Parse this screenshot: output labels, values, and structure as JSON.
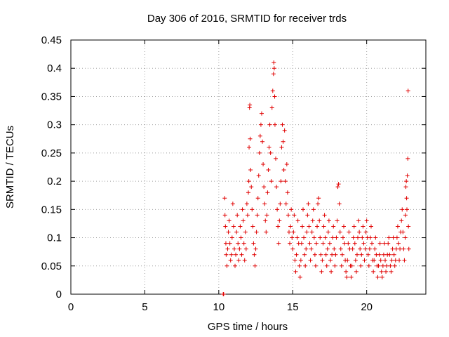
{
  "chart_data": {
    "type": "scatter",
    "title": "Day 306 of 2016, SRMTID for receiver trds",
    "xlabel": "GPS time / hours",
    "ylabel": "SRMTID / TECUs",
    "xlim": [
      0,
      24
    ],
    "ylim": [
      0,
      0.45
    ],
    "x_ticks": [
      0,
      5,
      10,
      15,
      20
    ],
    "x_tick_labels": [
      "0",
      "5",
      "10",
      "15",
      "20"
    ],
    "y_ticks": [
      0,
      0.05,
      0.1,
      0.15,
      0.2,
      0.25,
      0.3,
      0.35,
      0.4,
      0.45
    ],
    "y_tick_labels": [
      "0",
      "0.05",
      "0.1",
      "0.15",
      "0.2",
      "0.25",
      "0.3",
      "0.35",
      "0.4",
      "0.45"
    ],
    "grid": true,
    "marker": "+",
    "series": [
      {
        "name": "SRMTID",
        "color": "#e00000",
        "points": [
          [
            10.3,
            0.0
          ],
          [
            10.33,
            0.0
          ],
          [
            10.4,
            0.17
          ],
          [
            10.42,
            0.14
          ],
          [
            10.45,
            0.12
          ],
          [
            10.48,
            0.09
          ],
          [
            10.5,
            0.07
          ],
          [
            10.55,
            0.05
          ],
          [
            10.6,
            0.08
          ],
          [
            10.65,
            0.11
          ],
          [
            10.7,
            0.13
          ],
          [
            10.75,
            0.09
          ],
          [
            10.8,
            0.06
          ],
          [
            10.85,
            0.07
          ],
          [
            10.9,
            0.1
          ],
          [
            10.95,
            0.16
          ],
          [
            11.0,
            0.12
          ],
          [
            11.05,
            0.08
          ],
          [
            11.1,
            0.05
          ],
          [
            11.15,
            0.07
          ],
          [
            11.2,
            0.11
          ],
          [
            11.25,
            0.14
          ],
          [
            11.3,
            0.09
          ],
          [
            11.35,
            0.06
          ],
          [
            11.4,
            0.08
          ],
          [
            11.45,
            0.12
          ],
          [
            11.5,
            0.1
          ],
          [
            11.55,
            0.07
          ],
          [
            11.6,
            0.15
          ],
          [
            11.65,
            0.13
          ],
          [
            11.7,
            0.09
          ],
          [
            11.75,
            0.06
          ],
          [
            11.8,
            0.11
          ],
          [
            11.85,
            0.08
          ],
          [
            11.9,
            0.16
          ],
          [
            11.95,
            0.14
          ],
          [
            12.0,
            0.18
          ],
          [
            12.03,
            0.2
          ],
          [
            12.05,
            0.26
          ],
          [
            12.08,
            0.33
          ],
          [
            12.1,
            0.335
          ],
          [
            12.12,
            0.275
          ],
          [
            12.15,
            0.22
          ],
          [
            12.2,
            0.19
          ],
          [
            12.25,
            0.15
          ],
          [
            12.3,
            0.12
          ],
          [
            12.35,
            0.09
          ],
          [
            12.4,
            0.07
          ],
          [
            12.45,
            0.05
          ],
          [
            12.5,
            0.08
          ],
          [
            12.55,
            0.11
          ],
          [
            12.6,
            0.14
          ],
          [
            12.65,
            0.17
          ],
          [
            12.7,
            0.21
          ],
          [
            12.75,
            0.25
          ],
          [
            12.8,
            0.28
          ],
          [
            12.85,
            0.3
          ],
          [
            12.9,
            0.32
          ],
          [
            12.95,
            0.27
          ],
          [
            13.0,
            0.23
          ],
          [
            13.05,
            0.19
          ],
          [
            13.1,
            0.16
          ],
          [
            13.15,
            0.13
          ],
          [
            13.2,
            0.11
          ],
          [
            13.25,
            0.14
          ],
          [
            13.3,
            0.18
          ],
          [
            13.35,
            0.22
          ],
          [
            13.4,
            0.26
          ],
          [
            13.45,
            0.3
          ],
          [
            13.5,
            0.25
          ],
          [
            13.55,
            0.2
          ],
          [
            13.6,
            0.33
          ],
          [
            13.65,
            0.36
          ],
          [
            13.7,
            0.39
          ],
          [
            13.72,
            0.41
          ],
          [
            13.75,
            0.4
          ],
          [
            13.78,
            0.35
          ],
          [
            13.8,
            0.3
          ],
          [
            13.85,
            0.24
          ],
          [
            13.9,
            0.19
          ],
          [
            13.95,
            0.15
          ],
          [
            14.0,
            0.12
          ],
          [
            14.05,
            0.09
          ],
          [
            14.1,
            0.13
          ],
          [
            14.15,
            0.16
          ],
          [
            14.2,
            0.2
          ],
          [
            14.25,
            0.26
          ],
          [
            14.3,
            0.3
          ],
          [
            14.35,
            0.27
          ],
          [
            14.4,
            0.22
          ],
          [
            14.45,
            0.29
          ],
          [
            14.5,
            0.2
          ],
          [
            14.55,
            0.16
          ],
          [
            14.6,
            0.23
          ],
          [
            14.65,
            0.18
          ],
          [
            14.7,
            0.14
          ],
          [
            14.75,
            0.11
          ],
          [
            14.8,
            0.09
          ],
          [
            14.85,
            0.12
          ],
          [
            14.9,
            0.15
          ],
          [
            14.95,
            0.1
          ],
          [
            15.0,
            0.08
          ],
          [
            15.05,
            0.11
          ],
          [
            15.1,
            0.14
          ],
          [
            15.15,
            0.06
          ],
          [
            15.2,
            0.04
          ],
          [
            15.25,
            0.07
          ],
          [
            15.3,
            0.1
          ],
          [
            15.35,
            0.13
          ],
          [
            15.4,
            0.09
          ],
          [
            15.45,
            0.05
          ],
          [
            15.5,
            0.03
          ],
          [
            15.55,
            0.06
          ],
          [
            15.6,
            0.09
          ],
          [
            15.65,
            0.12
          ],
          [
            15.7,
            0.15
          ],
          [
            15.75,
            0.1
          ],
          [
            15.8,
            0.07
          ],
          [
            15.85,
            0.05
          ],
          [
            15.9,
            0.08
          ],
          [
            15.95,
            0.11
          ],
          [
            16.0,
            0.14
          ],
          [
            16.05,
            0.16
          ],
          [
            16.1,
            0.12
          ],
          [
            16.15,
            0.09
          ],
          [
            16.2,
            0.06
          ],
          [
            16.25,
            0.08
          ],
          [
            16.3,
            0.11
          ],
          [
            16.35,
            0.13
          ],
          [
            16.4,
            0.15
          ],
          [
            16.45,
            0.1
          ],
          [
            16.5,
            0.07
          ],
          [
            16.55,
            0.05
          ],
          [
            16.6,
            0.09
          ],
          [
            16.65,
            0.12
          ],
          [
            16.7,
            0.16
          ],
          [
            16.75,
            0.17
          ],
          [
            16.8,
            0.13
          ],
          [
            16.85,
            0.1
          ],
          [
            16.9,
            0.07
          ],
          [
            16.95,
            0.04
          ],
          [
            17.0,
            0.06
          ],
          [
            17.05,
            0.09
          ],
          [
            17.1,
            0.12
          ],
          [
            17.15,
            0.14
          ],
          [
            17.2,
            0.1
          ],
          [
            17.25,
            0.07
          ],
          [
            17.3,
            0.05
          ],
          [
            17.35,
            0.08
          ],
          [
            17.4,
            0.11
          ],
          [
            17.45,
            0.13
          ],
          [
            17.5,
            0.09
          ],
          [
            17.55,
            0.06
          ],
          [
            17.6,
            0.04
          ],
          [
            17.65,
            0.07
          ],
          [
            17.7,
            0.1
          ],
          [
            17.75,
            0.12
          ],
          [
            17.8,
            0.08
          ],
          [
            17.85,
            0.05
          ],
          [
            17.9,
            0.07
          ],
          [
            17.95,
            0.1
          ],
          [
            18.0,
            0.13
          ],
          [
            18.05,
            0.19
          ],
          [
            18.1,
            0.195
          ],
          [
            18.15,
            0.16
          ],
          [
            18.2,
            0.11
          ],
          [
            18.25,
            0.08
          ],
          [
            18.3,
            0.05
          ],
          [
            18.35,
            0.07
          ],
          [
            18.4,
            0.1
          ],
          [
            18.45,
            0.12
          ],
          [
            18.5,
            0.09
          ],
          [
            18.55,
            0.06
          ],
          [
            18.6,
            0.04
          ],
          [
            18.65,
            0.03
          ],
          [
            18.7,
            0.06
          ],
          [
            18.75,
            0.09
          ],
          [
            18.8,
            0.11
          ],
          [
            18.85,
            0.08
          ],
          [
            18.9,
            0.05
          ],
          [
            18.95,
            0.03
          ],
          [
            19.0,
            0.05
          ],
          [
            19.05,
            0.08
          ],
          [
            19.1,
            0.1
          ],
          [
            19.15,
            0.12
          ],
          [
            19.2,
            0.09
          ],
          [
            19.25,
            0.06
          ],
          [
            19.3,
            0.04
          ],
          [
            19.35,
            0.07
          ],
          [
            19.4,
            0.1
          ],
          [
            19.45,
            0.13
          ],
          [
            19.5,
            0.11
          ],
          [
            19.55,
            0.08
          ],
          [
            19.6,
            0.05
          ],
          [
            19.65,
            0.07
          ],
          [
            19.7,
            0.1
          ],
          [
            19.75,
            0.12
          ],
          [
            19.8,
            0.09
          ],
          [
            19.85,
            0.06
          ],
          [
            19.9,
            0.08
          ],
          [
            19.95,
            0.11
          ],
          [
            20.0,
            0.13
          ],
          [
            20.05,
            0.1
          ],
          [
            20.1,
            0.07
          ],
          [
            20.15,
            0.05
          ],
          [
            20.2,
            0.08
          ],
          [
            20.25,
            0.1
          ],
          [
            20.3,
            0.12
          ],
          [
            20.35,
            0.09
          ],
          [
            20.4,
            0.06
          ],
          [
            20.45,
            0.04
          ],
          [
            20.5,
            0.06
          ],
          [
            20.55,
            0.08
          ],
          [
            20.6,
            0.1
          ],
          [
            20.65,
            0.07
          ],
          [
            20.7,
            0.05
          ],
          [
            20.75,
            0.03
          ],
          [
            20.8,
            0.05
          ],
          [
            20.85,
            0.07
          ],
          [
            20.9,
            0.09
          ],
          [
            20.95,
            0.06
          ],
          [
            21.0,
            0.04
          ],
          [
            21.05,
            0.03
          ],
          [
            21.1,
            0.05
          ],
          [
            21.15,
            0.07
          ],
          [
            21.2,
            0.09
          ],
          [
            21.25,
            0.06
          ],
          [
            21.3,
            0.04
          ],
          [
            21.35,
            0.05
          ],
          [
            21.4,
            0.07
          ],
          [
            21.45,
            0.09
          ],
          [
            21.5,
            0.1
          ],
          [
            21.55,
            0.07
          ],
          [
            21.6,
            0.05
          ],
          [
            21.65,
            0.04
          ],
          [
            21.7,
            0.06
          ],
          [
            21.75,
            0.08
          ],
          [
            21.8,
            0.1
          ],
          [
            21.85,
            0.07
          ],
          [
            21.9,
            0.05
          ],
          [
            21.95,
            0.06
          ],
          [
            22.0,
            0.08
          ],
          [
            22.05,
            0.1
          ],
          [
            22.1,
            0.12
          ],
          [
            22.15,
            0.09
          ],
          [
            22.2,
            0.06
          ],
          [
            22.25,
            0.08
          ],
          [
            22.3,
            0.11
          ],
          [
            22.35,
            0.13
          ],
          [
            22.4,
            0.15
          ],
          [
            22.45,
            0.11
          ],
          [
            22.5,
            0.08
          ],
          [
            22.55,
            0.06
          ],
          [
            22.6,
            0.1
          ],
          [
            22.62,
            0.14
          ],
          [
            22.65,
            0.19
          ],
          [
            22.68,
            0.2
          ],
          [
            22.7,
            0.17
          ],
          [
            22.72,
            0.15
          ],
          [
            22.75,
            0.21
          ],
          [
            22.78,
            0.24
          ],
          [
            22.8,
            0.36
          ],
          [
            22.82,
            0.12
          ],
          [
            22.85,
            0.08
          ]
        ]
      }
    ]
  }
}
